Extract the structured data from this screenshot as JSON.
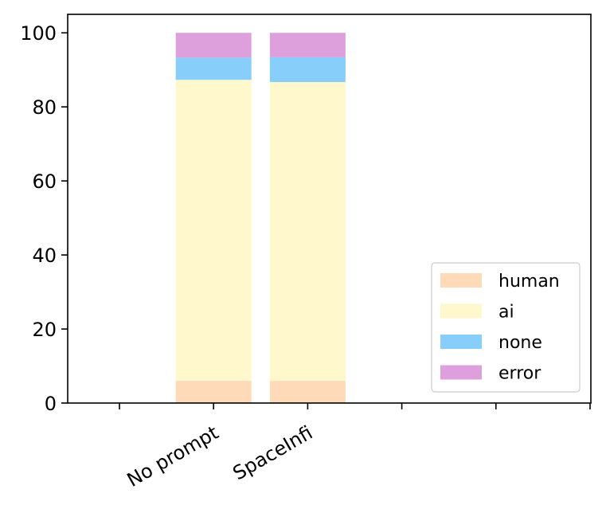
{
  "chart_data": {
    "type": "bar",
    "stacked": true,
    "categories": [
      "No prompt",
      "SpaceInfi"
    ],
    "series": [
      {
        "name": "human",
        "color": "#ffdab9",
        "values": [
          6.0,
          6.0
        ]
      },
      {
        "name": "ai",
        "color": "#fff8cd",
        "values": [
          81.3,
          80.7
        ]
      },
      {
        "name": "none",
        "color": "#87cefa",
        "values": [
          6.0,
          6.7
        ]
      },
      {
        "name": "error",
        "color": "#dda0dd",
        "values": [
          6.7,
          6.6
        ]
      }
    ],
    "ylim": [
      0,
      105
    ],
    "yticks": [
      0,
      20,
      40,
      60,
      80,
      100
    ],
    "ytick_labels": [
      "0",
      "20",
      "40",
      "60",
      "80",
      "100"
    ],
    "xtick_count": 6,
    "grid": false,
    "legend_position": "lower-right",
    "title": "",
    "xlabel": "",
    "ylabel": ""
  }
}
